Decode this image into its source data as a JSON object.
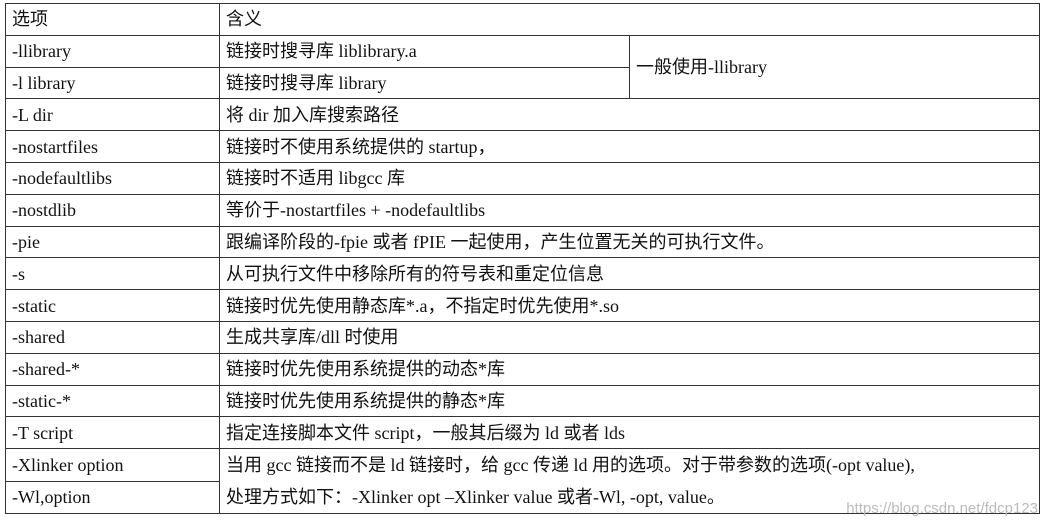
{
  "header": {
    "option": "选项",
    "meaning": "含义"
  },
  "rows": [
    {
      "option": "-llibrary",
      "meaning": "链接时搜寻库 liblibrary.a"
    },
    {
      "option": "-l library",
      "meaning": "链接时搜寻库 library"
    },
    {
      "option": "-L dir",
      "meaning": "将 dir 加入库搜索路径"
    },
    {
      "option": "-nostartfiles",
      "meaning": "链接时不使用系统提供的 startup，"
    },
    {
      "option": "-nodefaultlibs",
      "meaning": "链接时不适用 libgcc 库"
    },
    {
      "option": "-nostdlib",
      "meaning": "等价于-nostartfiles + -nodefaultlibs"
    },
    {
      "option": "-pie",
      "meaning": "跟编译阶段的-fpie 或者 fPIE 一起使用，产生位置无关的可执行文件。"
    },
    {
      "option": "-s",
      "meaning": "从可执行文件中移除所有的符号表和重定位信息"
    },
    {
      "option": "-static",
      "meaning": "链接时优先使用静态库*.a，不指定时优先使用*.so"
    },
    {
      "option": "-shared",
      "meaning": "生成共享库/dll 时使用"
    },
    {
      "option": "-shared-*",
      "meaning": "链接时优先使用系统提供的动态*库"
    },
    {
      "option": "-static-*",
      "meaning": "链接时优先使用系统提供的静态*库"
    },
    {
      "option": "-T script",
      "meaning": "指定连接脚本文件 script，一般其后缀为 ld 或者 lds"
    },
    {
      "option": "-Xlinker option"
    },
    {
      "option": "-Wl,option"
    }
  ],
  "library_note": "一般使用-llibrary",
  "linker_note_line1": "当用 gcc 链接而不是 ld 链接时，给 gcc 传递 ld 用的选项。对于带参数的选项(-opt value),",
  "linker_note_line2": "处理方式如下：-Xlinker opt –Xlinker value 或者-Wl, -opt, value。",
  "watermark": "https://blog.csdn.net/fdcp123"
}
